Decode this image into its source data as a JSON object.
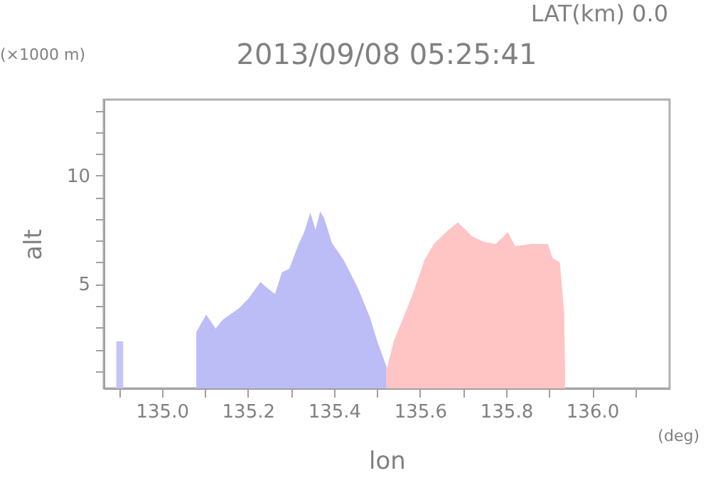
{
  "chart_data": {
    "type": "area",
    "title": "2013/09/08 05:25:41",
    "subtitle": "LAT(km) 0.0",
    "xlabel": "lon",
    "ylabel": "alt",
    "annotations": [
      "(×1000 m)",
      "(deg)"
    ],
    "series": [
      {
        "color": "#c4c4f8",
        "x": [
          134.894,
          134.91
        ],
        "values": [
          2.37,
          2.37
        ]
      },
      {
        "color": "#bcbcf6",
        "x": [
          135.08,
          135.103,
          135.125,
          135.141,
          135.18,
          135.202,
          135.229,
          135.246,
          135.263,
          135.279,
          135.296,
          135.318,
          135.331,
          135.345,
          135.357,
          135.368,
          135.378,
          135.395,
          135.423,
          135.456,
          135.483,
          135.5,
          135.522
        ],
        "values": [
          2.8,
          3.6,
          2.95,
          3.35,
          3.9,
          4.35,
          5.1,
          4.8,
          4.55,
          5.55,
          5.7,
          6.85,
          7.4,
          8.3,
          7.5,
          8.35,
          8.0,
          6.9,
          6.1,
          4.8,
          3.5,
          2.4,
          1.2
        ]
      },
      {
        "color": "#ffc4c4",
        "x": [
          135.522,
          135.539,
          135.566,
          135.583,
          135.599,
          135.61,
          135.632,
          135.666,
          135.688,
          135.721,
          135.748,
          135.776,
          135.804,
          135.821,
          135.859,
          135.897,
          135.908,
          135.925,
          135.935,
          135.937
        ],
        "values": [
          1.05,
          2.37,
          3.7,
          4.55,
          5.45,
          6.1,
          6.85,
          7.5,
          7.85,
          7.2,
          6.95,
          6.85,
          7.4,
          6.75,
          6.85,
          6.85,
          6.2,
          6.0,
          3.7,
          0.9
        ]
      }
    ],
    "xlim": [
      134.865,
      136.18
    ],
    "xticks": [
      {
        "value": 134.9,
        "label": null
      },
      {
        "value": 135,
        "label": "135.0"
      },
      {
        "value": 135.1,
        "label": null
      },
      135.2,
      {
        "value": 135.3,
        "label": null
      },
      135.4,
      {
        "value": 135.5,
        "label": null
      },
      135.6,
      {
        "value": 135.7,
        "label": null
      },
      135.8,
      {
        "value": 135.9,
        "label": null
      },
      {
        "value": 136,
        "label": "136.0"
      },
      {
        "value": 136.1,
        "label": null
      }
    ],
    "ylim": [
      0.2,
      13.5
    ],
    "yticks": [
      {
        "value": 1,
        "label": null
      },
      {
        "value": 2,
        "label": null
      },
      {
        "value": 3,
        "label": null
      },
      {
        "value": 4,
        "label": null
      },
      5,
      {
        "value": 6,
        "label": null
      },
      {
        "value": 7,
        "label": null
      },
      {
        "value": 8,
        "label": null
      },
      {
        "value": 9,
        "label": null
      },
      10,
      {
        "value": 11,
        "label": null
      },
      {
        "value": 12,
        "label": null
      },
      {
        "value": 13,
        "label": null
      }
    ]
  }
}
